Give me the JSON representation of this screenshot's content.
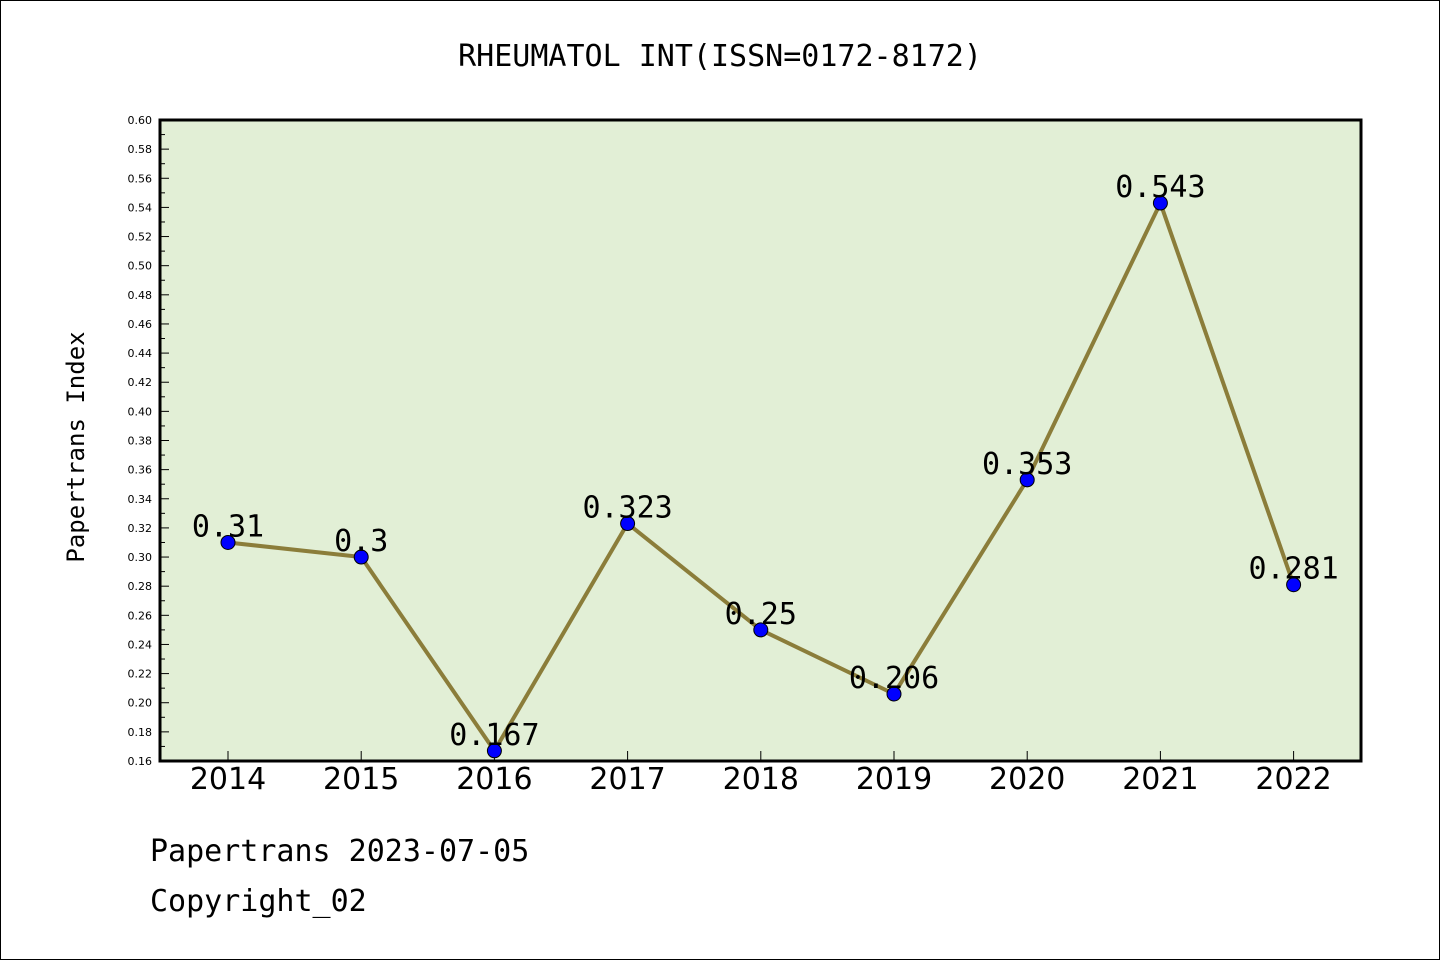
{
  "footer": {
    "line1": "Papertrans 2023-07-05",
    "line2": "Copyright_02"
  },
  "colors": {
    "plot_background": "#e2efd6",
    "line": "#8b7d3a",
    "marker": "#0000ff"
  },
  "chart_data": {
    "type": "line",
    "title": "RHEUMATOL INT(ISSN=0172-8172)",
    "xlabel": "",
    "ylabel": "Papertrans Index",
    "categories": [
      "2014",
      "2015",
      "2016",
      "2017",
      "2018",
      "2019",
      "2020",
      "2021",
      "2022"
    ],
    "series": [
      {
        "values": [
          0.31,
          0.3,
          0.167,
          0.323,
          0.25,
          0.206,
          0.353,
          0.543,
          0.281
        ],
        "labels": [
          "0.31",
          "0.3",
          "0.167",
          "0.323",
          "0.25",
          "0.206",
          "0.353",
          "0.543",
          "0.281"
        ]
      }
    ],
    "ylim": [
      0.16,
      0.6
    ],
    "yticks": [
      "0.16",
      "0.18",
      "0.20",
      "0.22",
      "0.24",
      "0.26",
      "0.28",
      "0.30",
      "0.32",
      "0.34",
      "0.36",
      "0.38",
      "0.40",
      "0.42",
      "0.44",
      "0.46",
      "0.48",
      "0.50",
      "0.52",
      "0.54",
      "0.56",
      "0.58",
      "0.60"
    ],
    "grid": false,
    "legend": "none"
  }
}
